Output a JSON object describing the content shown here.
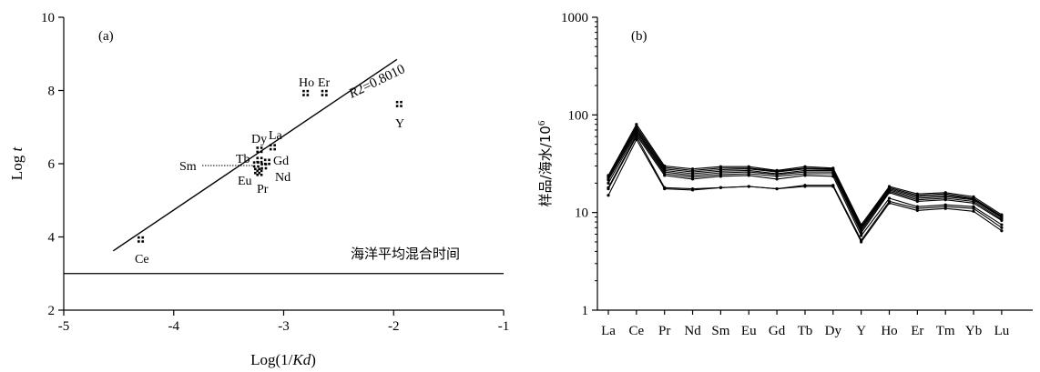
{
  "colors": {
    "ink": "#000000",
    "background": "#ffffff"
  },
  "chart_data": [
    {
      "type": "scatter",
      "panel_label": "(a)",
      "xlabel_prefix": "Log(1/",
      "xlabel_italic": "Kd",
      "xlabel_suffix": ")",
      "ylabel_prefix": "Log ",
      "ylabel_italic": "t",
      "xlim": [
        -5,
        -1
      ],
      "ylim": [
        2,
        10
      ],
      "x_ticks": [
        -5,
        -4,
        -3,
        -2,
        -1
      ],
      "y_ticks": [
        2,
        4,
        6,
        8,
        10
      ],
      "points": [
        {
          "label": "Ce",
          "x": -4.3,
          "y": 3.93
        },
        {
          "label": "La",
          "x": -3.1,
          "y": 6.45
        },
        {
          "label": "Dy",
          "x": -3.22,
          "y": 6.38
        },
        {
          "label": "Tb",
          "x": -3.22,
          "y": 6.1
        },
        {
          "label": "Gd",
          "x": -3.15,
          "y": 6.05
        },
        {
          "label": "Sm",
          "x": -3.25,
          "y": 5.98
        },
        {
          "label": "Nd",
          "x": -3.18,
          "y": 5.93
        },
        {
          "label": "Eu",
          "x": -3.24,
          "y": 5.8
        },
        {
          "label": "Pr",
          "x": -3.22,
          "y": 5.75
        },
        {
          "label": "Ho",
          "x": -2.8,
          "y": 7.93
        },
        {
          "label": "Er",
          "x": -2.63,
          "y": 7.93
        },
        {
          "label": "Y",
          "x": -1.95,
          "y": 7.63
        }
      ],
      "regression": {
        "label_italic": "R",
        "label_suffix": "2=0.8010",
        "x": [
          -4.55,
          -1.97
        ],
        "y": [
          3.62,
          8.85
        ]
      },
      "hline": {
        "y": 3,
        "label": "海洋平均混合时间"
      }
    },
    {
      "type": "line",
      "panel_label": "(b)",
      "ylabel": "样品/海水/10",
      "ylabel_sup": "6",
      "yscale": "log",
      "ylim": [
        1,
        1000
      ],
      "y_ticks": [
        1,
        10,
        100,
        1000
      ],
      "categories": [
        "La",
        "Ce",
        "Pr",
        "Nd",
        "Sm",
        "Eu",
        "Gd",
        "Tb",
        "Dy",
        "Y",
        "Ho",
        "Er",
        "Tm",
        "Yb",
        "Lu"
      ],
      "series": [
        {
          "values": [
            24,
            80,
            30,
            28,
            29.5,
            29.5,
            27,
            29.5,
            28.5,
            7.5,
            18.5,
            15.5,
            16,
            14.5,
            9.5
          ]
        },
        {
          "values": [
            23.5,
            76,
            29,
            27,
            28.5,
            28.5,
            26.5,
            28.5,
            28,
            7.2,
            18,
            15,
            15.5,
            14,
            9.2
          ]
        },
        {
          "values": [
            23,
            73,
            28,
            26,
            27.5,
            28,
            26,
            28,
            27.5,
            7,
            17.5,
            14.5,
            15,
            13.8,
            9
          ]
        },
        {
          "values": [
            22,
            70,
            27,
            25,
            26.5,
            27,
            25,
            27,
            27,
            6.8,
            17,
            14,
            14.5,
            13.5,
            8.8
          ]
        },
        {
          "values": [
            21.5,
            68,
            26,
            24,
            25.5,
            26,
            24.5,
            26,
            26,
            6.5,
            16.5,
            13.5,
            14,
            13,
            8.5
          ]
        },
        {
          "values": [
            20,
            65,
            25,
            23,
            24.5,
            25,
            23.5,
            25,
            25,
            6.2,
            16,
            13,
            13.5,
            12.5,
            8.3
          ]
        },
        {
          "values": [
            18,
            62,
            24,
            22,
            23.5,
            24,
            22,
            24,
            23.5,
            5.8,
            14,
            11.5,
            12,
            11.5,
            7.5
          ]
        },
        {
          "values": [
            17.5,
            60,
            18,
            17.5,
            18,
            18.5,
            17.5,
            19,
            19,
            5.2,
            13,
            11,
            11.5,
            11,
            7
          ]
        },
        {
          "values": [
            15,
            56,
            17.5,
            17,
            18,
            18.5,
            17.5,
            18.5,
            18.5,
            5,
            12.5,
            10.5,
            11,
            10.3,
            6.5
          ]
        }
      ]
    }
  ]
}
